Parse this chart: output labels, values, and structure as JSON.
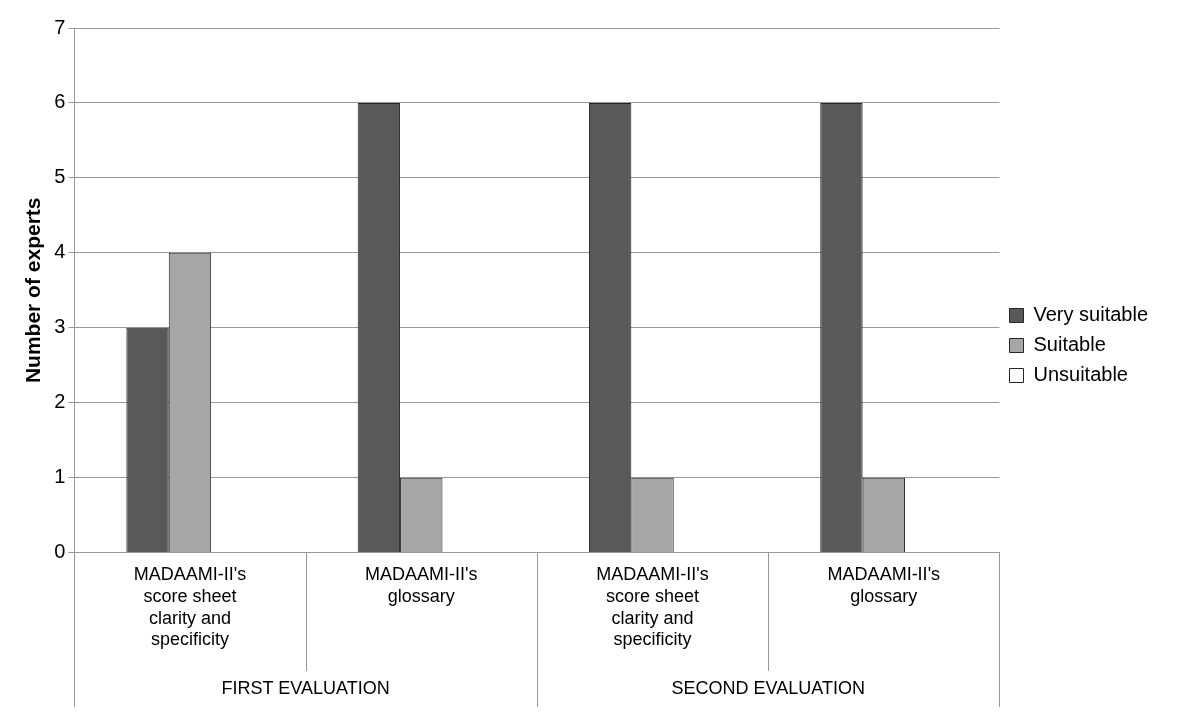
{
  "chart_data": {
    "type": "bar",
    "ylabel": "Number of experts",
    "categories": [
      "MADAAMI-II's score sheet clarity and specificity",
      "MADAAMI-II's glossary",
      "MADAAMI-II's score sheet clarity and specificity",
      "MADAAMI-II's glossary"
    ],
    "series": [
      {
        "name": "Very suitable",
        "color": "#595959",
        "values": [
          3,
          6,
          6,
          6
        ]
      },
      {
        "name": "Suitable",
        "color": "#a6a6a6",
        "values": [
          4,
          1,
          1,
          1
        ]
      },
      {
        "name": "Unsuitable",
        "color": "#ffffff",
        "values": [
          0,
          0,
          0,
          0
        ]
      }
    ],
    "ylim": [
      0,
      7
    ],
    "yticks": [
      0,
      1,
      2,
      3,
      4,
      5,
      6,
      7
    ],
    "grid": "y",
    "legend": "right",
    "annotations": [
      "FIRST EVALUATION",
      "SECOND EVALUATION"
    ]
  }
}
